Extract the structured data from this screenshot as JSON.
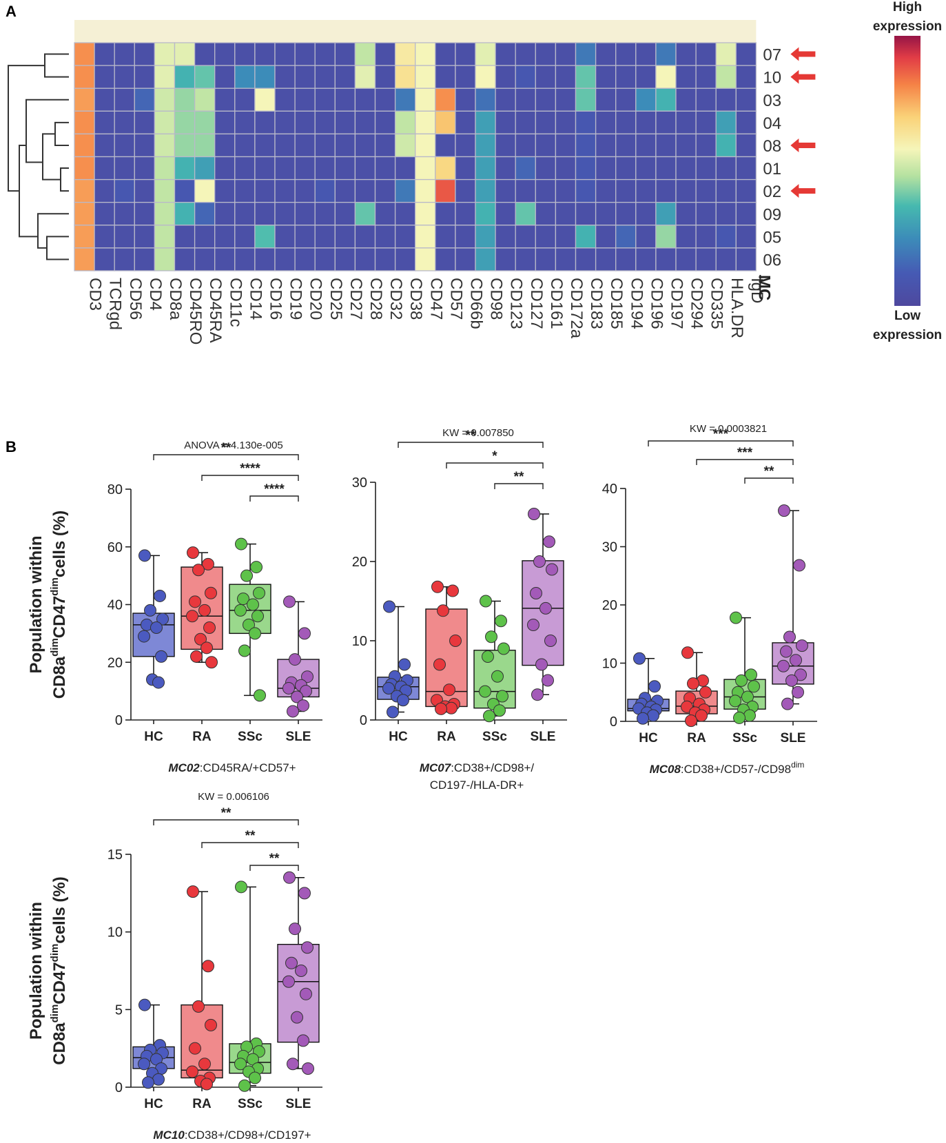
{
  "panel_a": {
    "letter": "A",
    "colorbar_high": [
      "High",
      "expression"
    ],
    "colorbar_low": [
      "Low",
      "expression"
    ],
    "mc_label": "MC"
  },
  "panel_b": {
    "letter": "B"
  },
  "colors": {
    "HC": {
      "fill": "#4b5ac0",
      "box": "#7e88d6"
    },
    "RA": {
      "fill": "#e8383d",
      "box": "#f08a8c"
    },
    "SSc": {
      "fill": "#5ec24a",
      "box": "#9ad88c"
    },
    "SLE": {
      "fill": "#a35ab8",
      "box": "#c89bd5"
    },
    "arrow": "#e53935"
  },
  "chart_data": [
    {
      "type": "heatmap",
      "title": "",
      "xlabel": "",
      "ylabel": "MC",
      "columns": [
        "CD3",
        "TCRgd",
        "CD56",
        "CD4",
        "CD8a",
        "CD45RO",
        "CD45RA",
        "CD11c",
        "CD14",
        "CD16",
        "CD19",
        "CD20",
        "CD25",
        "CD27",
        "CD28",
        "CD32",
        "CD38",
        "CD47",
        "CD57",
        "CD66b",
        "CD98",
        "CD123",
        "CD127",
        "CD161",
        "CD172a",
        "CD183",
        "CD185",
        "CD194",
        "CD196",
        "CD197",
        "CD294",
        "CD335",
        "HLA.DR",
        "IgD"
      ],
      "rows": [
        "07",
        "10",
        "03",
        "04",
        "08",
        "01",
        "02",
        "09",
        "05",
        "06"
      ],
      "highlighted_rows": [
        "07",
        "10",
        "08",
        "02"
      ],
      "color_scale": {
        "low": "Low expression",
        "high": "High expression",
        "min": 0,
        "max": 1
      },
      "values": [
        [
          0.8,
          0.05,
          0.05,
          0.05,
          0.55,
          0.55,
          0.05,
          0.05,
          0.05,
          0.05,
          0.05,
          0.05,
          0.05,
          0.05,
          0.5,
          0.05,
          0.62,
          0.58,
          0.05,
          0.05,
          0.55,
          0.05,
          0.05,
          0.05,
          0.05,
          0.2,
          0.05,
          0.05,
          0.05,
          0.2,
          0.05,
          0.05,
          0.55,
          0.05
        ],
        [
          0.8,
          0.05,
          0.05,
          0.05,
          0.55,
          0.35,
          0.4,
          0.05,
          0.25,
          0.25,
          0.05,
          0.05,
          0.05,
          0.05,
          0.55,
          0.05,
          0.65,
          0.58,
          0.05,
          0.05,
          0.58,
          0.05,
          0.1,
          0.05,
          0.05,
          0.4,
          0.05,
          0.05,
          0.05,
          0.58,
          0.05,
          0.05,
          0.5,
          0.05
        ],
        [
          0.78,
          0.05,
          0.05,
          0.15,
          0.52,
          0.45,
          0.5,
          0.05,
          0.05,
          0.58,
          0.05,
          0.05,
          0.05,
          0.05,
          0.05,
          0.05,
          0.2,
          0.58,
          0.8,
          0.05,
          0.18,
          0.05,
          0.05,
          0.05,
          0.05,
          0.4,
          0.05,
          0.05,
          0.25,
          0.35,
          0.05,
          0.05,
          0.05,
          0.05
        ],
        [
          0.8,
          0.05,
          0.05,
          0.05,
          0.52,
          0.45,
          0.45,
          0.05,
          0.05,
          0.05,
          0.05,
          0.05,
          0.05,
          0.05,
          0.05,
          0.05,
          0.5,
          0.58,
          0.72,
          0.05,
          0.3,
          0.05,
          0.05,
          0.05,
          0.05,
          0.1,
          0.05,
          0.05,
          0.05,
          0.05,
          0.05,
          0.05,
          0.3,
          0.05
        ],
        [
          0.8,
          0.05,
          0.05,
          0.05,
          0.52,
          0.45,
          0.45,
          0.05,
          0.05,
          0.05,
          0.05,
          0.05,
          0.05,
          0.05,
          0.05,
          0.05,
          0.52,
          0.58,
          0.05,
          0.05,
          0.3,
          0.05,
          0.05,
          0.05,
          0.05,
          0.1,
          0.05,
          0.05,
          0.05,
          0.05,
          0.05,
          0.05,
          0.35,
          0.05
        ],
        [
          0.8,
          0.05,
          0.05,
          0.05,
          0.5,
          0.35,
          0.3,
          0.05,
          0.05,
          0.05,
          0.05,
          0.05,
          0.05,
          0.05,
          0.05,
          0.05,
          0.05,
          0.58,
          0.68,
          0.05,
          0.3,
          0.05,
          0.15,
          0.05,
          0.05,
          0.1,
          0.05,
          0.05,
          0.05,
          0.05,
          0.05,
          0.05,
          0.05,
          0.05
        ],
        [
          0.78,
          0.05,
          0.1,
          0.05,
          0.5,
          0.1,
          0.58,
          0.05,
          0.05,
          0.05,
          0.05,
          0.05,
          0.1,
          0.05,
          0.05,
          0.05,
          0.2,
          0.58,
          0.88,
          0.05,
          0.3,
          0.05,
          0.05,
          0.05,
          0.05,
          0.1,
          0.05,
          0.05,
          0.05,
          0.05,
          0.05,
          0.05,
          0.05,
          0.05
        ],
        [
          0.78,
          0.05,
          0.05,
          0.05,
          0.5,
          0.35,
          0.15,
          0.05,
          0.05,
          0.05,
          0.05,
          0.05,
          0.05,
          0.05,
          0.4,
          0.05,
          0.05,
          0.58,
          0.05,
          0.05,
          0.35,
          0.05,
          0.4,
          0.05,
          0.05,
          0.05,
          0.05,
          0.05,
          0.05,
          0.3,
          0.05,
          0.05,
          0.05,
          0.05
        ],
        [
          0.78,
          0.05,
          0.05,
          0.05,
          0.5,
          0.05,
          0.05,
          0.05,
          0.05,
          0.38,
          0.05,
          0.05,
          0.05,
          0.05,
          0.05,
          0.05,
          0.05,
          0.58,
          0.05,
          0.05,
          0.3,
          0.05,
          0.05,
          0.05,
          0.05,
          0.35,
          0.05,
          0.15,
          0.05,
          0.45,
          0.05,
          0.05,
          0.1,
          0.05
        ],
        [
          0.78,
          0.05,
          0.05,
          0.05,
          0.5,
          0.05,
          0.05,
          0.05,
          0.05,
          0.05,
          0.05,
          0.05,
          0.05,
          0.05,
          0.05,
          0.05,
          0.05,
          0.58,
          0.05,
          0.05,
          0.3,
          0.05,
          0.05,
          0.05,
          0.05,
          0.05,
          0.05,
          0.05,
          0.05,
          0.05,
          0.05,
          0.05,
          0.05,
          0.05
        ]
      ]
    },
    {
      "type": "box",
      "title": "ANOVA = 4.130e-005",
      "ylabel": "Population within CD8a dim CD47 dim cells (%)",
      "xlabel_italic": "MC02",
      "xlabel_rest": [
        ":CD45RA/+CD57+"
      ],
      "categories": [
        "HC",
        "RA",
        "SSc",
        "SLE"
      ],
      "ylim": [
        0,
        80
      ],
      "yticks": [
        0,
        20,
        40,
        60,
        80
      ],
      "boxes": [
        {
          "min": 13,
          "q1": 22,
          "median": 33,
          "q3": 37,
          "max": 57
        },
        {
          "min": 20,
          "q1": 24.5,
          "median": 36,
          "q3": 53,
          "max": 58
        },
        {
          "min": 8.5,
          "q1": 30,
          "median": 38,
          "q3": 47,
          "max": 61
        },
        {
          "min": 3,
          "q1": 8,
          "median": 11,
          "q3": 21,
          "max": 41
        }
      ],
      "points": [
        [
          57,
          43,
          38,
          35,
          33,
          32,
          29,
          22,
          14,
          13
        ],
        [
          58,
          54,
          52,
          44,
          41,
          38,
          36,
          32,
          28,
          25,
          22,
          20
        ],
        [
          61,
          53,
          50,
          44,
          42,
          40,
          38,
          36,
          33,
          30,
          24,
          8.5
        ],
        [
          41,
          30,
          21,
          15,
          13,
          12,
          11,
          10,
          8,
          5,
          3
        ]
      ],
      "significance": [
        {
          "from": "HC",
          "to": "SLE",
          "label": "**"
        },
        {
          "from": "RA",
          "to": "SLE",
          "label": "****"
        },
        {
          "from": "SSc",
          "to": "SLE",
          "label": "****"
        }
      ]
    },
    {
      "type": "box",
      "title": "KW = 0.007850",
      "ylabel": "",
      "xlabel_italic": "MC07",
      "xlabel_rest": [
        ":CD38+/CD98+/",
        "CD197-/HLA-DR+"
      ],
      "categories": [
        "HC",
        "RA",
        "SSc",
        "SLE"
      ],
      "ylim": [
        0,
        30
      ],
      "yticks": [
        0,
        10,
        20,
        30
      ],
      "boxes": [
        {
          "min": 1,
          "q1": 2.6,
          "median": 4.2,
          "q3": 5.4,
          "max": 14.3
        },
        {
          "min": 1.4,
          "q1": 1.7,
          "median": 3.6,
          "q3": 14.0,
          "max": 16.8
        },
        {
          "min": 0.5,
          "q1": 1.5,
          "median": 3.6,
          "q3": 8.8,
          "max": 15.0
        },
        {
          "min": 3.2,
          "q1": 6.9,
          "median": 14.1,
          "q3": 20.1,
          "max": 26.0
        }
      ],
      "points": [
        [
          14.3,
          7,
          5.5,
          5,
          4.5,
          4.2,
          4,
          3.7,
          3,
          2.5,
          1
        ],
        [
          16.8,
          16.3,
          13.8,
          10,
          7,
          3.8,
          2.5,
          2,
          1.7,
          1.5,
          1.4
        ],
        [
          15,
          12.5,
          10.5,
          9,
          8,
          5.5,
          3.6,
          3,
          2,
          1.2,
          0.5
        ],
        [
          26,
          22.5,
          20,
          19,
          16,
          14.1,
          12,
          10,
          7,
          5,
          3.2
        ]
      ],
      "significance": [
        {
          "from": "HC",
          "to": "SLE",
          "label": "**"
        },
        {
          "from": "RA",
          "to": "SLE",
          "label": "*"
        },
        {
          "from": "SSc",
          "to": "SLE",
          "label": "**"
        }
      ]
    },
    {
      "type": "box",
      "title": "KW = 0.0003821",
      "ylabel": "",
      "xlabel_italic": "MC08",
      "xlabel_rest": [
        ":CD38+/CD57-/CD98",
        "dim"
      ],
      "categories": [
        "HC",
        "RA",
        "SSc",
        "SLE"
      ],
      "ylim": [
        0,
        40
      ],
      "yticks": [
        0,
        10,
        20,
        30,
        40
      ],
      "boxes": [
        {
          "min": 0.5,
          "q1": 1.8,
          "median": 2.2,
          "q3": 3.8,
          "max": 10.8
        },
        {
          "min": 0.1,
          "q1": 1.3,
          "median": 2.6,
          "q3": 5.2,
          "max": 11.8
        },
        {
          "min": 0.6,
          "q1": 2.1,
          "median": 4.2,
          "q3": 7.2,
          "max": 17.8
        },
        {
          "min": 3,
          "q1": 6.4,
          "median": 9.5,
          "q3": 13.5,
          "max": 36.2
        }
      ],
      "points": [
        [
          10.8,
          6,
          4,
          3.5,
          3,
          2.5,
          2.2,
          2,
          1.5,
          1,
          0.5
        ],
        [
          11.8,
          7,
          6.5,
          5,
          4,
          3,
          2.5,
          2,
          1.5,
          1,
          0.1
        ],
        [
          17.8,
          8,
          7,
          6,
          5,
          4.2,
          3.5,
          2.5,
          2,
          1,
          0.6
        ],
        [
          36.2,
          26.8,
          14.5,
          13,
          12,
          10.5,
          9.5,
          8,
          7,
          5,
          3
        ]
      ],
      "significance": [
        {
          "from": "HC",
          "to": "SLE",
          "label": "***"
        },
        {
          "from": "RA",
          "to": "SLE",
          "label": "***"
        },
        {
          "from": "SSc",
          "to": "SLE",
          "label": "**"
        }
      ]
    },
    {
      "type": "box",
      "title": "KW = 0.006106",
      "ylabel": "Population within CD8a dim CD47 dim cells (%)",
      "xlabel_italic": "MC10",
      "xlabel_rest": [
        ":CD38+/CD98+/CD197+"
      ],
      "categories": [
        "HC",
        "RA",
        "SSc",
        "SLE"
      ],
      "ylim": [
        0,
        15
      ],
      "yticks": [
        0,
        5,
        10,
        15
      ],
      "boxes": [
        {
          "min": 0.3,
          "q1": 1.2,
          "median": 1.9,
          "q3": 2.6,
          "max": 5.3
        },
        {
          "min": 0.2,
          "q1": 0.6,
          "median": 1.1,
          "q3": 5.3,
          "max": 12.6
        },
        {
          "min": 0.1,
          "q1": 0.9,
          "median": 1.6,
          "q3": 2.8,
          "max": 12.9
        },
        {
          "min": 1.2,
          "q1": 2.9,
          "median": 6.8,
          "q3": 9.2,
          "max": 13.5
        }
      ],
      "points": [
        [
          5.3,
          2.7,
          2.4,
          2.2,
          2,
          1.8,
          1.5,
          1.2,
          0.9,
          0.5,
          0.3
        ],
        [
          12.6,
          7.8,
          5.2,
          4,
          2.5,
          1.5,
          1,
          0.6,
          0.4,
          0.2
        ],
        [
          12.9,
          2.8,
          2.6,
          2.3,
          2,
          1.8,
          1.5,
          1.2,
          1,
          0.6,
          0.1
        ],
        [
          13.5,
          12.5,
          10.2,
          9,
          8,
          7.5,
          6.8,
          6,
          4.5,
          3,
          1.5,
          1.2
        ]
      ],
      "significance": [
        {
          "from": "HC",
          "to": "SLE",
          "label": "**"
        },
        {
          "from": "RA",
          "to": "SLE",
          "label": "**"
        },
        {
          "from": "SSc",
          "to": "SLE",
          "label": "**"
        }
      ]
    }
  ]
}
